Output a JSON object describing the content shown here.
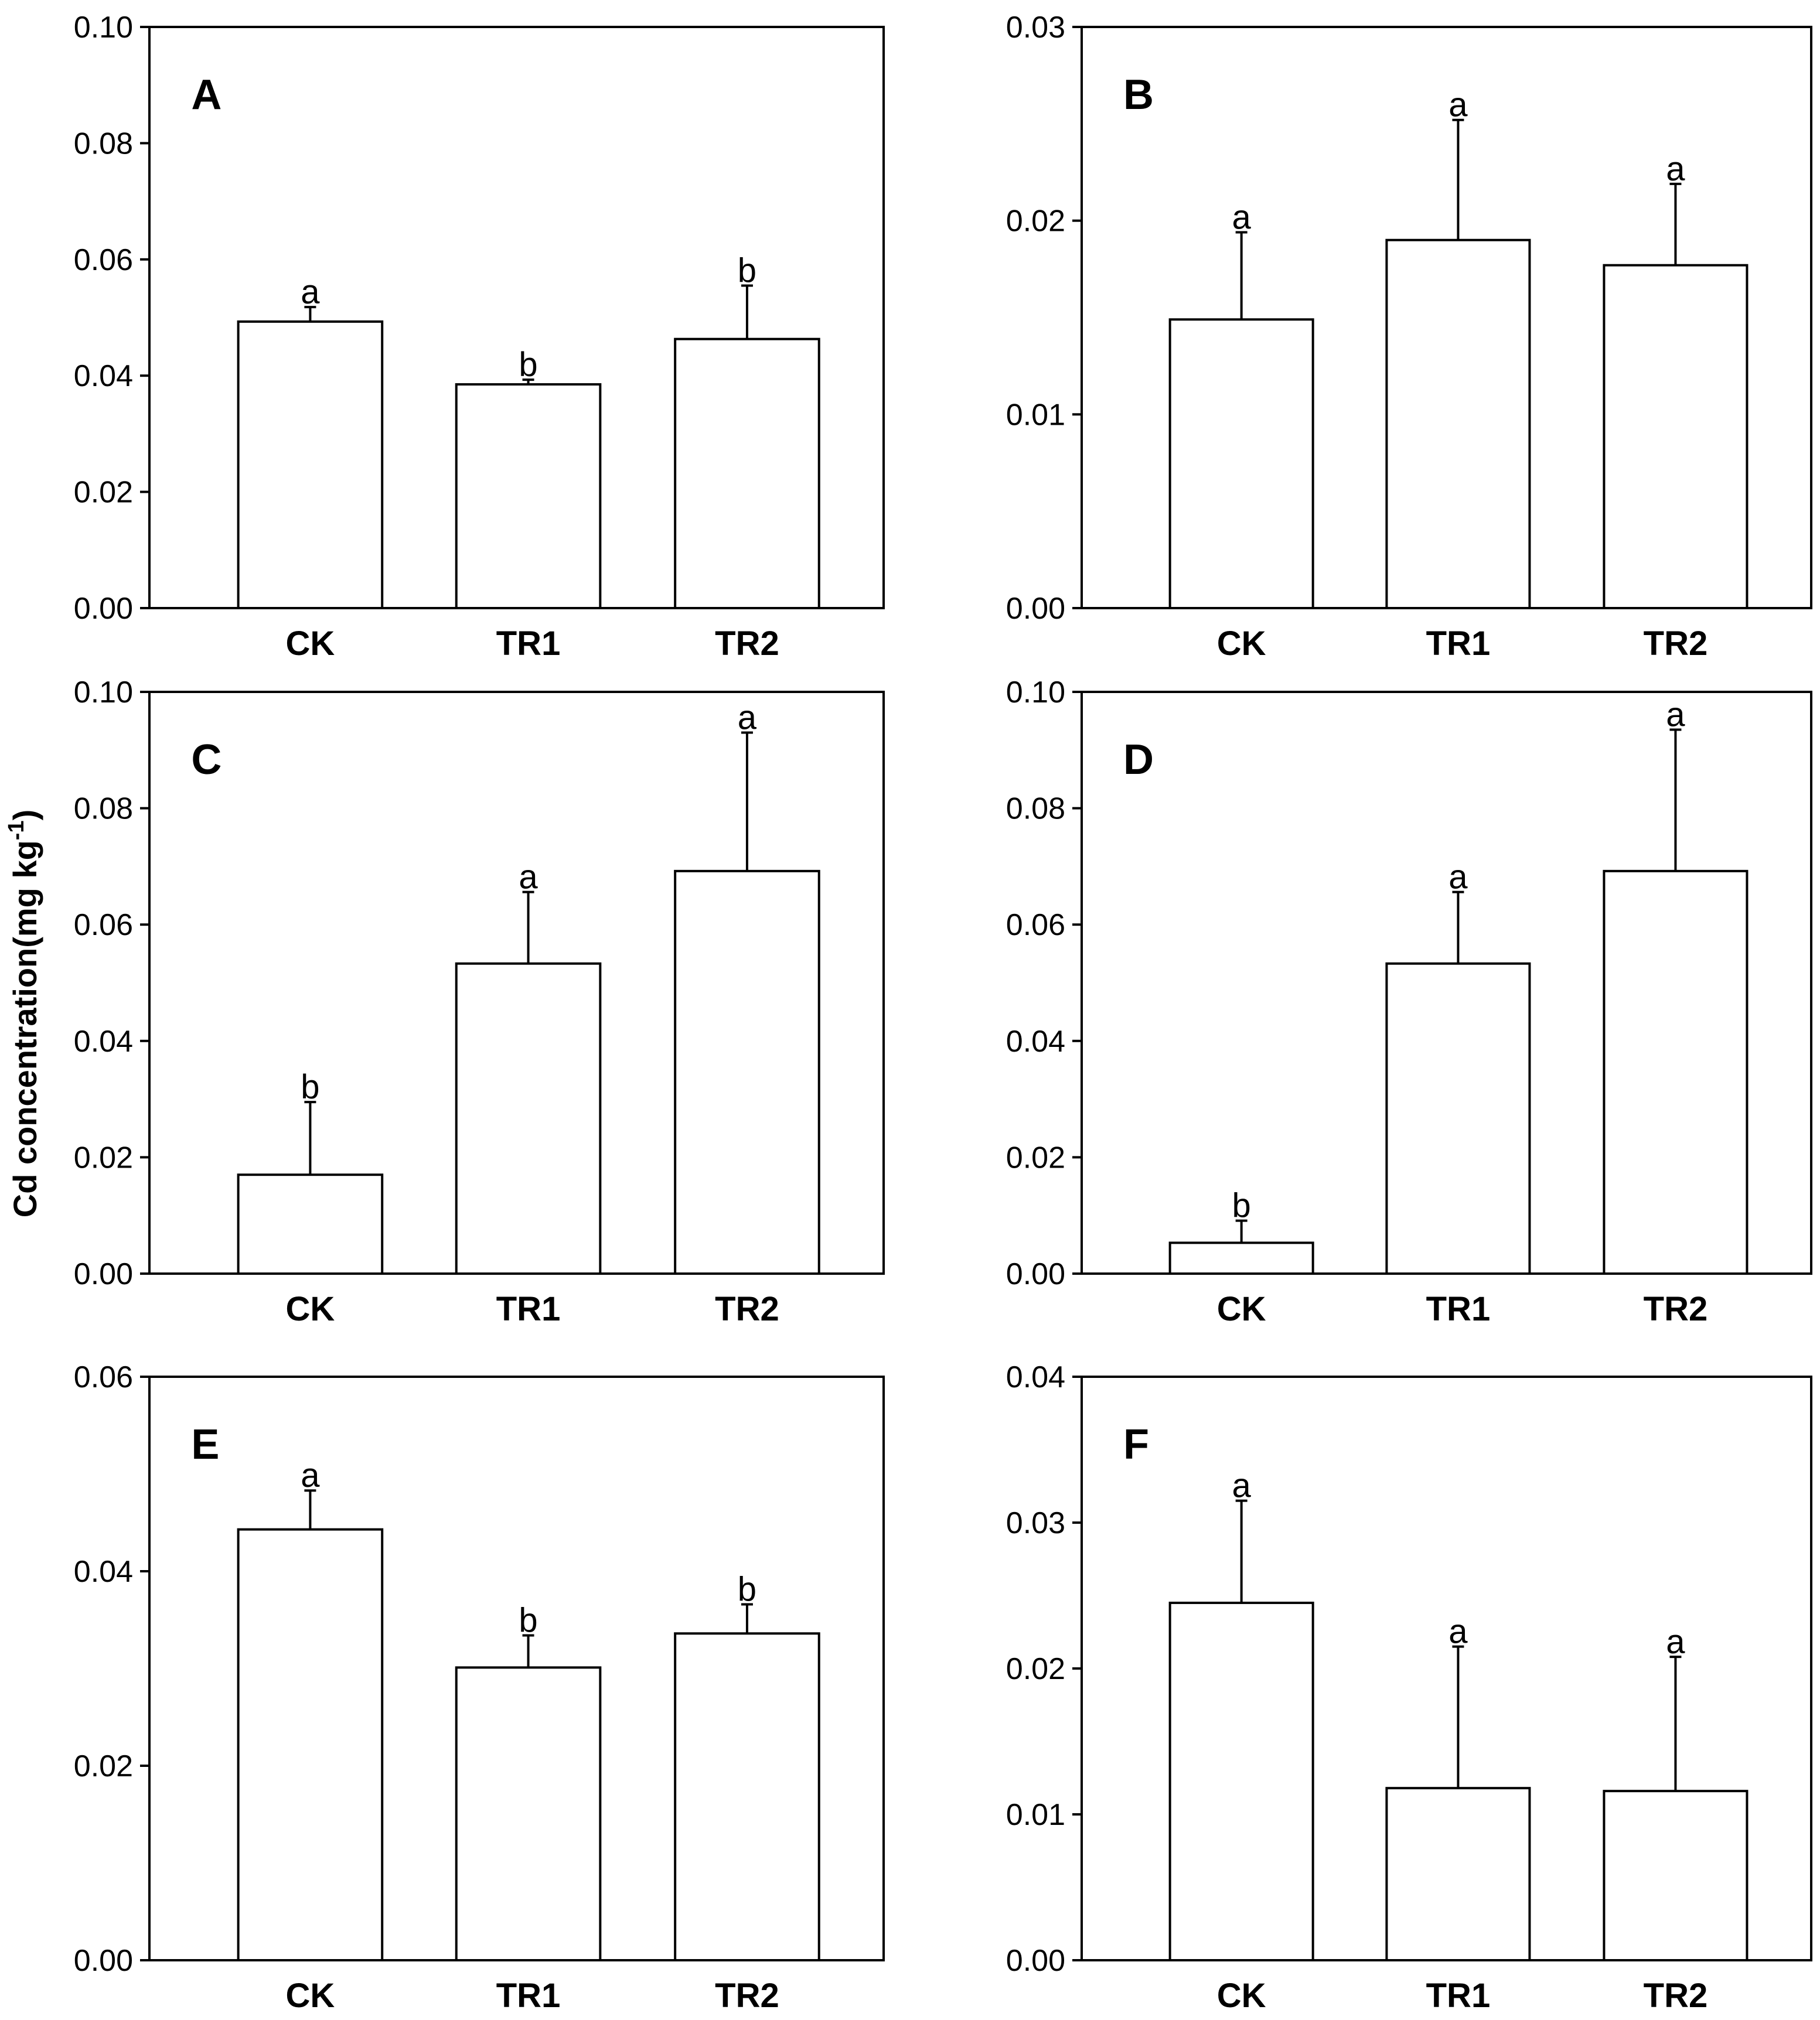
{
  "chart_data": [
    {
      "type": "bar",
      "panel": "A",
      "categories": [
        "CK",
        "TR1",
        "TR2"
      ],
      "values": [
        0.0493,
        0.0385,
        0.0463
      ],
      "errors": [
        0.0025,
        0.0008,
        0.0092
      ],
      "significance": [
        "a",
        "b",
        "b"
      ],
      "ylim": [
        0,
        0.1
      ],
      "yticks": [
        "0.00",
        "0.02",
        "0.04",
        "0.06",
        "0.08",
        "0.10"
      ]
    },
    {
      "type": "bar",
      "panel": "B",
      "categories": [
        "CK",
        "TR1",
        "TR2"
      ],
      "values": [
        0.0149,
        0.019,
        0.0177
      ],
      "errors": [
        0.0045,
        0.0062,
        0.0042
      ],
      "significance": [
        "a",
        "a",
        "a"
      ],
      "ylim": [
        0,
        0.03
      ],
      "yticks": [
        "0.00",
        "0.01",
        "0.02",
        "0.03"
      ]
    },
    {
      "type": "bar",
      "panel": "C",
      "categories": [
        "CK",
        "TR1",
        "TR2"
      ],
      "values": [
        0.017,
        0.0533,
        0.0692
      ],
      "errors": [
        0.0125,
        0.0123,
        0.0238
      ],
      "significance": [
        "b",
        "a",
        "a"
      ],
      "ylim": [
        0,
        0.1
      ],
      "yticks": [
        "0.00",
        "0.02",
        "0.04",
        "0.06",
        "0.08",
        "0.10"
      ]
    },
    {
      "type": "bar",
      "panel": "D",
      "categories": [
        "CK",
        "TR1",
        "TR2"
      ],
      "values": [
        0.0053,
        0.0533,
        0.0692
      ],
      "errors": [
        0.0038,
        0.0123,
        0.0243
      ],
      "significance": [
        "b",
        "a",
        "a"
      ],
      "ylim": [
        0,
        0.1
      ],
      "yticks": [
        "0.00",
        "0.02",
        "0.04",
        "0.06",
        "0.08",
        "0.10"
      ]
    },
    {
      "type": "bar",
      "panel": "E",
      "categories": [
        "CK",
        "TR1",
        "TR2"
      ],
      "values": [
        0.0443,
        0.0301,
        0.0336
      ],
      "errors": [
        0.004,
        0.0033,
        0.003
      ],
      "significance": [
        "a",
        "b",
        "b"
      ],
      "ylim": [
        0,
        0.06
      ],
      "yticks": [
        "0.00",
        "0.02",
        "0.04",
        "0.06"
      ]
    },
    {
      "type": "bar",
      "panel": "F",
      "categories": [
        "CK",
        "TR1",
        "TR2"
      ],
      "values": [
        0.0245,
        0.0118,
        0.0116
      ],
      "errors": [
        0.007,
        0.0097,
        0.0092
      ],
      "significance": [
        "a",
        "a",
        "a"
      ],
      "ylim": [
        0,
        0.04
      ],
      "yticks": [
        "0.00",
        "0.01",
        "0.02",
        "0.03",
        "0.04"
      ]
    }
  ],
  "ylabel": {
    "text": "Cd concentration(mg kg",
    "superscript": "-1",
    "close": ")"
  }
}
